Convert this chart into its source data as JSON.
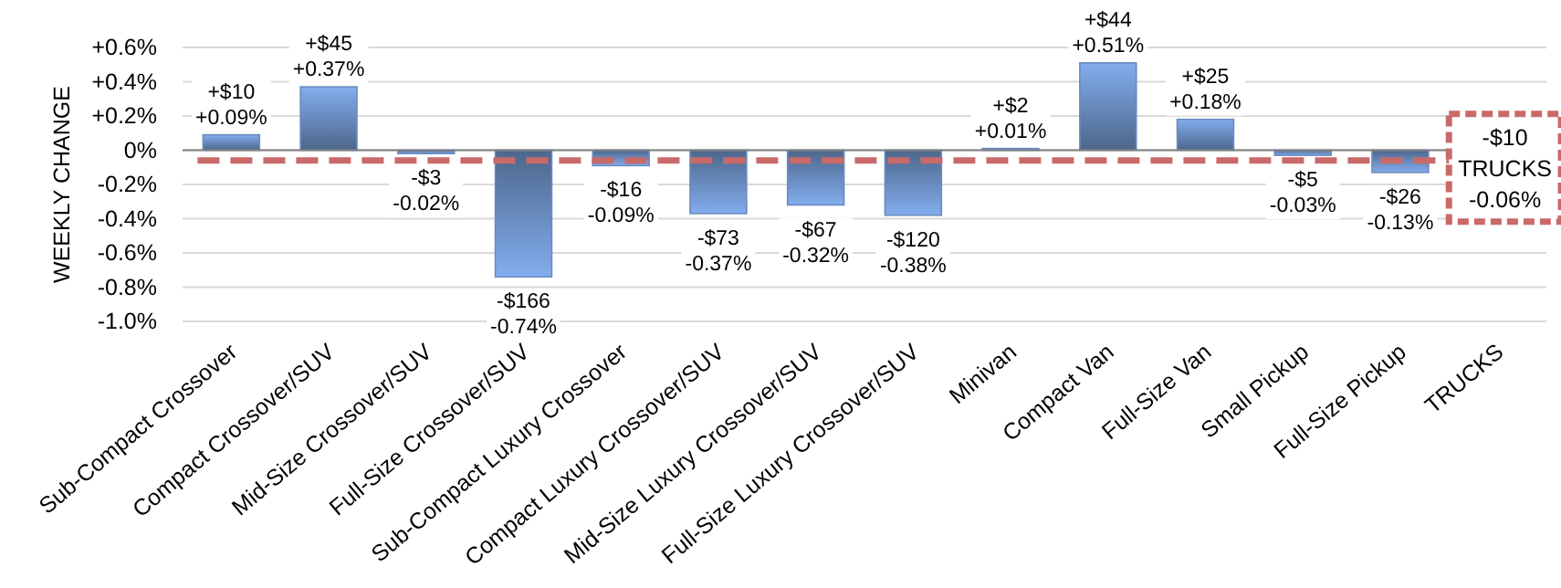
{
  "chart_data": {
    "type": "bar",
    "ylabel": "WEEKLY CHANGE",
    "categories": [
      "Sub-Compact Crossover",
      "Compact Crossover/SUV",
      "Mid-Size Crossover/SUV",
      "Full-Size Crossover/SUV",
      "Sub-Compact Luxury Crossover",
      "Compact Luxury Crossover/SUV",
      "Mid-Size Luxury Crossover/SUV",
      "Full-Size Luxury Crossover/SUV",
      "Minivan",
      "Compact Van",
      "Full-Size Van",
      "Small Pickup",
      "Full-Size Pickup",
      "TRUCKS"
    ],
    "values": [
      0.09,
      0.37,
      -0.02,
      -0.74,
      -0.09,
      -0.37,
      -0.32,
      -0.38,
      0.01,
      0.51,
      0.18,
      -0.03,
      -0.13,
      null
    ],
    "value_labels": [
      "+$10\n+0.09%",
      "+$45\n+0.37%",
      "-$3\n-0.02%",
      "-$166\n-0.74%",
      "-$16\n-0.09%",
      "-$73\n-0.37%",
      "-$67\n-0.32%",
      "-$120\n-0.38%",
      "+$2\n+0.01%",
      "+$44\n+0.51%",
      "+$25\n+0.18%",
      "-$5\n-0.03%",
      "-$26\n-0.13%",
      null
    ],
    "color": "#6a8cc0",
    "ylim": [
      -1.0,
      0.6
    ],
    "yticks": [
      {
        "value": 0.6,
        "label": "+0.6%"
      },
      {
        "value": 0.4,
        "label": "+0.4%"
      },
      {
        "value": 0.2,
        "label": "+0.2%"
      },
      {
        "value": 0,
        "label": "0%"
      },
      {
        "value": -0.2,
        "label": "-0.2%"
      },
      {
        "value": -0.4,
        "label": "-0.4%"
      },
      {
        "value": -0.6,
        "label": "-0.6%"
      },
      {
        "value": -0.8,
        "label": "-0.8%"
      },
      {
        "value": -1.0,
        "label": "-1.0%"
      }
    ],
    "grid": "y",
    "ref_lines": [
      {
        "axis": "y",
        "value": -0.06,
        "label": "-$10\nTRUCKS\n-0.06%",
        "color": "#c96a6a",
        "line_style": "dashed"
      }
    ]
  }
}
